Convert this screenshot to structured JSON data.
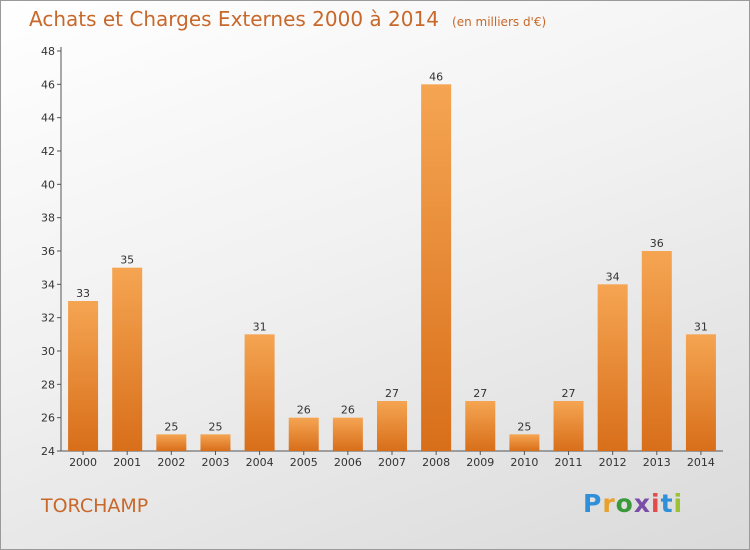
{
  "header": {
    "title": "Achats et Charges Externes 2000 à 2014",
    "unit": "(en milliers d'€)"
  },
  "footer": {
    "commune": "TORCHAMP",
    "brand": "Proxiti"
  },
  "colors": {
    "bar_light": "#f5a552",
    "bar_dark": "#d86e1a",
    "title": "#c8682a"
  },
  "chart_data": {
    "type": "bar",
    "title": "Achats et Charges Externes 2000 à 2014",
    "subtitle": "(en milliers d'€)",
    "xlabel": "",
    "ylabel": "",
    "categories": [
      "2000",
      "2001",
      "2002",
      "2003",
      "2004",
      "2005",
      "2006",
      "2007",
      "2008",
      "2009",
      "2010",
      "2011",
      "2012",
      "2013",
      "2014"
    ],
    "values": [
      33,
      35,
      25,
      25,
      31,
      26,
      26,
      27,
      46,
      27,
      25,
      27,
      34,
      36,
      31
    ],
    "ylim": [
      24,
      48
    ],
    "yticks": [
      24,
      26,
      28,
      30,
      32,
      34,
      36,
      38,
      40,
      42,
      44,
      46,
      48
    ],
    "grid": false,
    "legend": "none"
  }
}
